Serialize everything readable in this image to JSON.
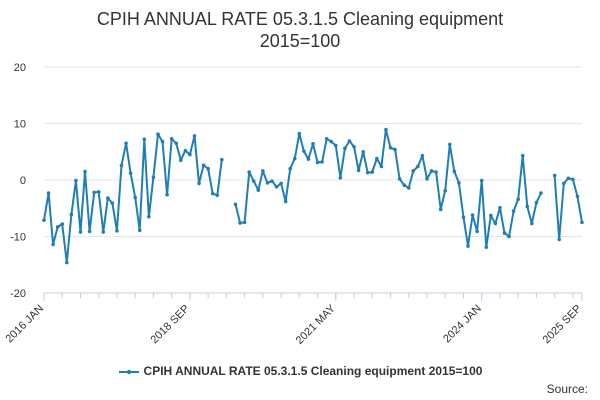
{
  "chart_data": {
    "type": "line",
    "title_line1": "CPIH ANNUAL RATE 05.3.1.5 Cleaning equipment",
    "title_line2": "2015=100",
    "xlabel": "",
    "ylabel": "",
    "ylim": [
      -20,
      20
    ],
    "y_ticks": [
      "20",
      "10",
      "0",
      "-10",
      "-20"
    ],
    "x_tick_labels": [
      "2016 JAN",
      "2018 SEP",
      "2021 MAY",
      "2024 JAN",
      "2025 SEP"
    ],
    "x_start": "2016 JAN",
    "x_end": "2025 SEP",
    "gridlines": true,
    "legend_position": "bottom",
    "colors": {
      "series": "#1f7fb4",
      "grid": "#e6e6e6",
      "axis": "#c0d0e0",
      "text": "#333333"
    },
    "series": [
      {
        "name": "CPIH ANNUAL RATE 05.3.1.5 Cleaning equipment 2015=100",
        "values": [
          -7.1,
          -2.3,
          -11.4,
          -8.3,
          -7.8,
          -14.6,
          -6.1,
          -0.1,
          -9.2,
          1.5,
          -9.1,
          -2.2,
          -2.1,
          -9.2,
          -3.2,
          -4.1,
          -9.0,
          2.6,
          6.5,
          1.2,
          -3.1,
          -8.9,
          7.2,
          -6.5,
          0.5,
          8.1,
          6.8,
          -2.6,
          7.3,
          6.5,
          3.5,
          5.2,
          4.5,
          7.8,
          -0.6,
          2.6,
          2.0,
          -2.4,
          -2.7,
          3.6,
          null,
          null,
          -4.3,
          -7.6,
          -7.5,
          1.4,
          -0.2,
          -1.8,
          1.6,
          -0.5,
          -0.2,
          -1.2,
          -0.6,
          -3.8,
          2.0,
          3.8,
          8.2,
          5.1,
          3.7,
          6.4,
          3.1,
          3.2,
          7.3,
          6.8,
          6.1,
          0.4,
          5.6,
          6.9,
          5.9,
          1.7,
          5.0,
          1.3,
          1.4,
          3.8,
          2.4,
          8.9,
          5.7,
          5.4,
          0.2,
          -0.9,
          -1.4,
          1.6,
          2.4,
          4.3,
          0.2,
          1.6,
          1.4,
          -5.2,
          -1.9,
          6.3,
          1.5,
          -0.5,
          -6.6,
          -11.7,
          -6.2,
          -9.1,
          -0.1,
          -11.9,
          -6.3,
          -7.7,
          -4.9,
          -9.4,
          -10.0,
          -5.5,
          -3.4,
          4.3,
          -4.7,
          -7.7,
          -4.0,
          -2.3,
          null,
          null,
          0.8,
          -10.5,
          -0.6,
          0.3,
          0.1,
          -2.9,
          -7.5
        ]
      }
    ]
  },
  "source_label": "Source:"
}
